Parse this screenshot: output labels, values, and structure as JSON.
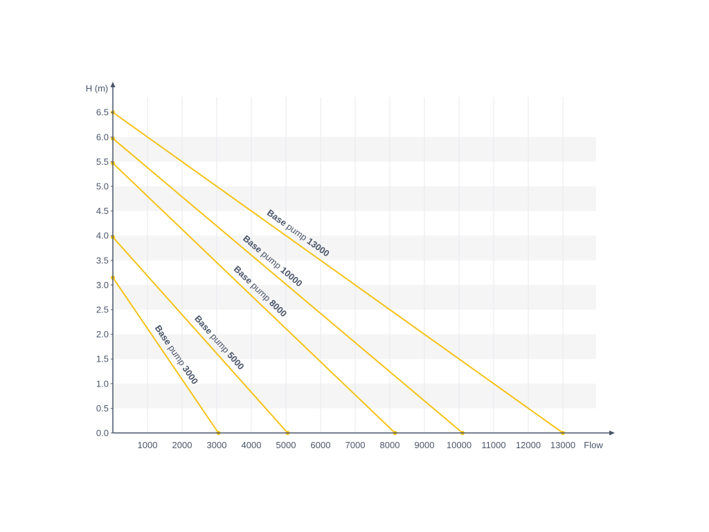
{
  "chart_data": {
    "type": "line",
    "ylabel": "H (m)",
    "xlabel": "Flow",
    "xlim": [
      0,
      14000
    ],
    "ylim": [
      0,
      6.5
    ],
    "x_ticks": [
      "1000",
      "2000",
      "3000",
      "4000",
      "5000",
      "6000",
      "7000",
      "8000",
      "9000",
      "10000",
      "11000",
      "12000",
      "13000"
    ],
    "y_ticks": [
      "0.0",
      "0.5",
      "1.0",
      "1.5",
      "2.0",
      "2.5",
      "3.0",
      "3.5",
      "4.0",
      "4.5",
      "5.0",
      "5.5",
      "6.0",
      "6.5"
    ],
    "grid": true,
    "band_color": "#f5f5f5",
    "line_color": "#f5c216",
    "axis_color": "#4a5568",
    "series": [
      {
        "prefix": "Base",
        "middle": "pump",
        "model": "3000",
        "points": [
          [
            0,
            3.15
          ],
          [
            3050,
            0
          ]
        ]
      },
      {
        "prefix": "Base",
        "middle": "pump",
        "model": "5000",
        "points": [
          [
            0,
            3.97
          ],
          [
            5050,
            0
          ]
        ]
      },
      {
        "prefix": "Base",
        "middle": "pump",
        "model": "8000",
        "points": [
          [
            0,
            5.47
          ],
          [
            8150,
            0
          ]
        ]
      },
      {
        "prefix": "Base",
        "middle": "pump",
        "model": "10000",
        "points": [
          [
            0,
            5.97
          ],
          [
            10100,
            0
          ]
        ]
      },
      {
        "prefix": "Base",
        "middle": "pump",
        "model": "13000",
        "points": [
          [
            0,
            6.5
          ],
          [
            13000,
            0
          ]
        ]
      }
    ]
  }
}
